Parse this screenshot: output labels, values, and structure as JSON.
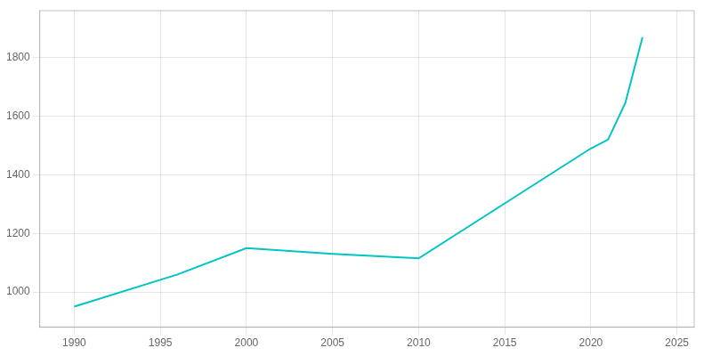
{
  "chart_data": {
    "type": "line",
    "x": [
      1990,
      1996,
      2000,
      2005,
      2010,
      2020,
      2021,
      2022,
      2023
    ],
    "values": [
      950,
      1060,
      1150,
      1130,
      1115,
      1490,
      1520,
      1645,
      1870
    ],
    "color": "#00C4C4",
    "xlim": [
      1988,
      2026
    ],
    "ylim": [
      880,
      1960
    ],
    "xticks": [
      1990,
      1995,
      2000,
      2005,
      2010,
      2015,
      2020,
      2025
    ],
    "yticks": [
      1000,
      1200,
      1400,
      1600,
      1800
    ],
    "grid": true
  }
}
